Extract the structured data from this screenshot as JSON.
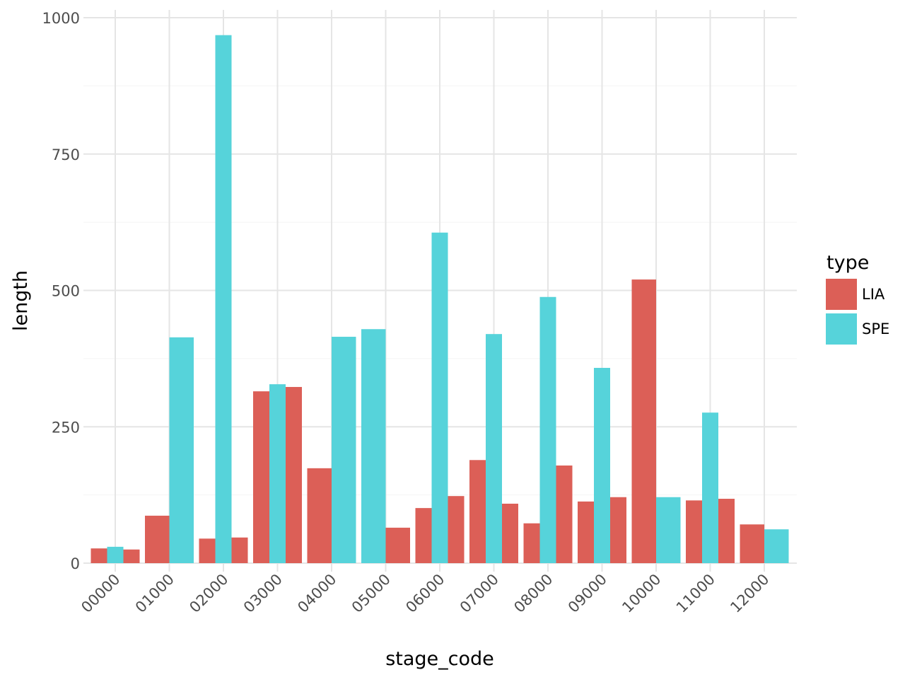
{
  "chart_data": {
    "type": "bar",
    "xlabel": "stage_code",
    "ylabel": "length",
    "ylim": [
      0,
      1000
    ],
    "yticks": [
      0,
      250,
      500,
      750,
      1000
    ],
    "ytick_labels": [
      "0",
      "250",
      "500",
      "750",
      "1000"
    ],
    "grid": true,
    "legend": {
      "title": "type",
      "placement": "right",
      "entries": [
        "LIA",
        "SPE"
      ]
    },
    "colors": {
      "LIA": "#DC5F57",
      "SPE": "#56D3DA"
    },
    "categories": [
      "00000",
      "01000",
      "02000",
      "03000",
      "04000",
      "05000",
      "06000",
      "07000",
      "08000",
      "09000",
      "10000",
      "11000",
      "12000"
    ],
    "groups": [
      [
        {
          "type": "LIA",
          "value": 27
        },
        {
          "type": "SPE",
          "value": 30
        },
        {
          "type": "LIA",
          "value": 25
        }
      ],
      [
        {
          "type": "LIA",
          "value": 87
        },
        {
          "type": "SPE",
          "value": 414
        }
      ],
      [
        {
          "type": "LIA",
          "value": 45
        },
        {
          "type": "SPE",
          "value": 968
        },
        {
          "type": "LIA",
          "value": 47
        }
      ],
      [
        {
          "type": "LIA",
          "value": 315
        },
        {
          "type": "SPE",
          "value": 328
        },
        {
          "type": "LIA",
          "value": 323
        }
      ],
      [
        {
          "type": "LIA",
          "value": 174
        },
        {
          "type": "SPE",
          "value": 415
        }
      ],
      [
        {
          "type": "SPE",
          "value": 429
        },
        {
          "type": "LIA",
          "value": 65
        }
      ],
      [
        {
          "type": "LIA",
          "value": 101
        },
        {
          "type": "SPE",
          "value": 606
        },
        {
          "type": "LIA",
          "value": 123
        }
      ],
      [
        {
          "type": "LIA",
          "value": 189
        },
        {
          "type": "SPE",
          "value": 420
        },
        {
          "type": "LIA",
          "value": 109
        }
      ],
      [
        {
          "type": "LIA",
          "value": 73
        },
        {
          "type": "SPE",
          "value": 488
        },
        {
          "type": "LIA",
          "value": 179
        }
      ],
      [
        {
          "type": "LIA",
          "value": 113
        },
        {
          "type": "SPE",
          "value": 358
        },
        {
          "type": "LIA",
          "value": 121
        }
      ],
      [
        {
          "type": "LIA",
          "value": 520
        },
        {
          "type": "SPE",
          "value": 121
        }
      ],
      [
        {
          "type": "LIA",
          "value": 115
        },
        {
          "type": "SPE",
          "value": 276
        },
        {
          "type": "LIA",
          "value": 118
        }
      ],
      [
        {
          "type": "LIA",
          "value": 71
        },
        {
          "type": "SPE",
          "value": 62
        }
      ]
    ]
  }
}
